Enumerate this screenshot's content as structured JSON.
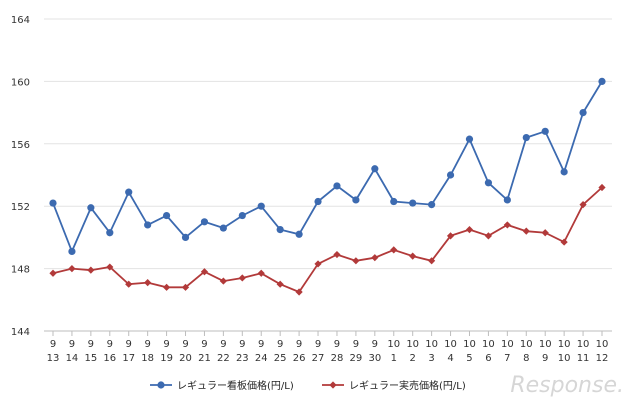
{
  "chart_data": {
    "type": "line",
    "categories": [
      [
        "9",
        "13"
      ],
      [
        "9",
        "14"
      ],
      [
        "9",
        "15"
      ],
      [
        "9",
        "16"
      ],
      [
        "9",
        "17"
      ],
      [
        "9",
        "18"
      ],
      [
        "9",
        "19"
      ],
      [
        "9",
        "20"
      ],
      [
        "9",
        "21"
      ],
      [
        "9",
        "22"
      ],
      [
        "9",
        "23"
      ],
      [
        "9",
        "24"
      ],
      [
        "9",
        "25"
      ],
      [
        "9",
        "26"
      ],
      [
        "9",
        "27"
      ],
      [
        "9",
        "28"
      ],
      [
        "9",
        "29"
      ],
      [
        "9",
        "30"
      ],
      [
        "10",
        "1"
      ],
      [
        "10",
        "2"
      ],
      [
        "10",
        "3"
      ],
      [
        "10",
        "4"
      ],
      [
        "10",
        "5"
      ],
      [
        "10",
        "6"
      ],
      [
        "10",
        "7"
      ],
      [
        "10",
        "8"
      ],
      [
        "10",
        "9"
      ],
      [
        "10",
        "10"
      ],
      [
        "10",
        "11"
      ],
      [
        "10",
        "12"
      ]
    ],
    "ylim": [
      144,
      164
    ],
    "yticks": [
      144,
      148,
      152,
      156,
      160,
      164
    ],
    "grid": true,
    "legend_position": "bottom",
    "series": [
      {
        "name": "レギュラー看板価格(円/L)",
        "color": "#3c6ab0",
        "marker": "circle",
        "values": [
          152.2,
          149.1,
          151.9,
          150.3,
          152.9,
          150.8,
          151.4,
          150.0,
          151.0,
          150.6,
          151.4,
          152.0,
          150.5,
          150.2,
          152.3,
          153.3,
          152.4,
          154.4,
          152.3,
          152.2,
          152.1,
          154.0,
          156.3,
          153.5,
          152.4,
          156.4,
          156.8,
          154.2,
          158.0,
          160.0
        ]
      },
      {
        "name": "レギュラー実売価格(円/L)",
        "color": "#b23a3a",
        "marker": "diamond",
        "values": [
          147.7,
          148.0,
          147.9,
          148.1,
          147.0,
          147.1,
          146.8,
          146.8,
          147.8,
          147.2,
          147.4,
          147.7,
          147.0,
          146.5,
          148.3,
          148.9,
          148.5,
          148.7,
          149.2,
          148.8,
          148.5,
          150.1,
          150.5,
          150.1,
          150.8,
          150.4,
          150.3,
          149.7,
          152.1,
          153.2
        ]
      }
    ]
  },
  "watermark": "Response."
}
